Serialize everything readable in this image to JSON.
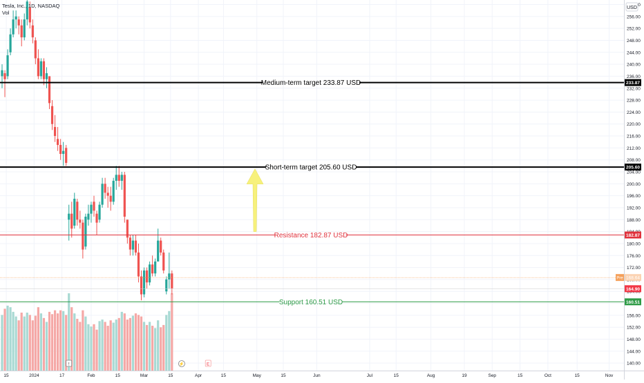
{
  "header": {
    "symbol_line": "Tesla, Inc., 1D, NASDAQ",
    "volume_label": "Vol"
  },
  "currency_button": "USD",
  "chart_data": {
    "type": "candlestick",
    "y_axis": {
      "min": 137.5,
      "max": 261.5,
      "ticks": [
        140,
        144,
        148,
        152,
        156,
        160,
        164,
        168,
        172,
        176,
        180,
        184,
        188,
        192,
        196,
        200,
        204,
        208,
        212,
        216,
        220,
        224,
        228,
        232,
        236,
        240,
        244,
        248,
        252,
        256,
        260
      ],
      "tick_labels": [
        "140.00",
        "144.00",
        "148.00",
        "152.00",
        "156.00",
        "160.00",
        "164.00",
        "168.00",
        "172.00",
        "176.00",
        "180.00",
        "184.00",
        "188.00",
        "192.00",
        "196.00",
        "200.00",
        "204.00",
        "208.00",
        "212.00",
        "216.00",
        "220.00",
        "224.00",
        "228.00",
        "232.00",
        "236.00",
        "240.00",
        "244.00",
        "248.00",
        "252.00",
        "256.00",
        "260.00"
      ]
    },
    "x_axis": {
      "labels": [
        {
          "text": "15",
          "bar": 1.5
        },
        {
          "text": "2024",
          "bar": 11.5
        },
        {
          "text": "17",
          "bar": 21.5
        },
        {
          "text": "Feb",
          "bar": 32
        },
        {
          "text": "15",
          "bar": 41.5
        },
        {
          "text": "Mar",
          "bar": 51
        },
        {
          "text": "15",
          "bar": 60.5
        },
        {
          "text": "Apr",
          "bar": 70.5
        },
        {
          "text": "15",
          "bar": 79.5
        },
        {
          "text": "May",
          "bar": 91.5
        },
        {
          "text": "15",
          "bar": 101
        },
        {
          "text": "Jun",
          "bar": 113
        },
        {
          "text": "Jul",
          "bar": 132
        },
        {
          "text": "15",
          "bar": 141.5
        },
        {
          "text": "Aug",
          "bar": 154
        },
        {
          "text": "19",
          "bar": 166
        },
        {
          "text": "Sep",
          "bar": 176
        },
        {
          "text": "15",
          "bar": 186
        },
        {
          "text": "Oct",
          "bar": 196
        },
        {
          "text": "15",
          "bar": 206.5
        },
        {
          "text": "Nov",
          "bar": 218
        }
      ]
    },
    "candles": [
      {
        "o": 236,
        "h": 240,
        "l": 232,
        "c": 238,
        "v": 72
      },
      {
        "o": 237,
        "h": 238,
        "l": 229,
        "c": 235,
        "v": 80
      },
      {
        "o": 236,
        "h": 245,
        "l": 235,
        "c": 243,
        "v": 84
      },
      {
        "o": 244,
        "h": 252,
        "l": 243,
        "c": 250,
        "v": 82
      },
      {
        "o": 250,
        "h": 258,
        "l": 249,
        "c": 255,
        "v": 76
      },
      {
        "o": 255,
        "h": 258,
        "l": 252,
        "c": 256,
        "v": 70
      },
      {
        "o": 255,
        "h": 256,
        "l": 250,
        "c": 253,
        "v": 65
      },
      {
        "o": 253,
        "h": 255,
        "l": 246,
        "c": 249,
        "v": 75
      },
      {
        "o": 249,
        "h": 257,
        "l": 248,
        "c": 255,
        "v": 70
      },
      {
        "o": 255,
        "h": 262,
        "l": 253,
        "c": 261,
        "v": 75
      },
      {
        "o": 259,
        "h": 261,
        "l": 252,
        "c": 254,
        "v": 72
      },
      {
        "o": 253,
        "h": 255,
        "l": 247,
        "c": 249,
        "v": 65
      },
      {
        "o": 248,
        "h": 249,
        "l": 240,
        "c": 242,
        "v": 71
      },
      {
        "o": 242,
        "h": 245,
        "l": 235,
        "c": 236,
        "v": 82
      },
      {
        "o": 236,
        "h": 242,
        "l": 235,
        "c": 241,
        "v": 74
      },
      {
        "o": 241,
        "h": 242,
        "l": 233,
        "c": 235,
        "v": 68
      },
      {
        "o": 235,
        "h": 239,
        "l": 232,
        "c": 237,
        "v": 63
      },
      {
        "o": 236,
        "h": 236,
        "l": 225,
        "c": 227,
        "v": 76
      },
      {
        "o": 226,
        "h": 228,
        "l": 218,
        "c": 220,
        "v": 73
      },
      {
        "o": 219,
        "h": 223,
        "l": 214,
        "c": 216,
        "v": 78
      },
      {
        "o": 215,
        "h": 219,
        "l": 211,
        "c": 213,
        "v": 74
      },
      {
        "o": 213,
        "h": 215,
        "l": 208,
        "c": 210,
        "v": 78
      },
      {
        "o": 210,
        "h": 214,
        "l": 206,
        "c": 211,
        "v": 77
      },
      {
        "o": 212,
        "h": 213,
        "l": 206,
        "c": 207,
        "v": 72
      },
      {
        "o": 188,
        "h": 193,
        "l": 181,
        "c": 190,
        "v": 100
      },
      {
        "o": 190,
        "h": 194,
        "l": 182,
        "c": 185,
        "v": 82
      },
      {
        "o": 186,
        "h": 197,
        "l": 185,
        "c": 195,
        "v": 74
      },
      {
        "o": 194,
        "h": 195,
        "l": 186,
        "c": 188,
        "v": 67
      },
      {
        "o": 188,
        "h": 191,
        "l": 185,
        "c": 187,
        "v": 63
      },
      {
        "o": 187,
        "h": 188,
        "l": 175,
        "c": 178,
        "v": 78
      },
      {
        "o": 179,
        "h": 190,
        "l": 178,
        "c": 189,
        "v": 70
      },
      {
        "o": 188,
        "h": 193,
        "l": 186,
        "c": 190,
        "v": 60
      },
      {
        "o": 190,
        "h": 194,
        "l": 187,
        "c": 193,
        "v": 57
      },
      {
        "o": 194,
        "h": 196,
        "l": 189,
        "c": 191,
        "v": 60
      },
      {
        "o": 190,
        "h": 191,
        "l": 183,
        "c": 187,
        "v": 53
      },
      {
        "o": 188,
        "h": 194,
        "l": 187,
        "c": 193,
        "v": 64
      },
      {
        "o": 193,
        "h": 202,
        "l": 192,
        "c": 200,
        "v": 66
      },
      {
        "o": 200,
        "h": 202,
        "l": 195,
        "c": 197,
        "v": 63
      },
      {
        "o": 197,
        "h": 199,
        "l": 192,
        "c": 196,
        "v": 58
      },
      {
        "o": 196,
        "h": 199,
        "l": 191,
        "c": 194,
        "v": 65
      },
      {
        "o": 194,
        "h": 202,
        "l": 193,
        "c": 201,
        "v": 62
      },
      {
        "o": 201,
        "h": 206,
        "l": 198,
        "c": 203,
        "v": 66
      },
      {
        "o": 203,
        "h": 206,
        "l": 199,
        "c": 201,
        "v": 68
      },
      {
        "o": 201,
        "h": 204,
        "l": 198,
        "c": 203,
        "v": 76
      },
      {
        "o": 203,
        "h": 204,
        "l": 187,
        "c": 189,
        "v": 74
      },
      {
        "o": 188,
        "h": 188,
        "l": 180,
        "c": 182,
        "v": 66
      },
      {
        "o": 182,
        "h": 183,
        "l": 176,
        "c": 178,
        "v": 68
      },
      {
        "o": 178,
        "h": 183,
        "l": 176,
        "c": 181,
        "v": 71
      },
      {
        "o": 181,
        "h": 183,
        "l": 176,
        "c": 177,
        "v": 74
      },
      {
        "o": 177,
        "h": 180,
        "l": 167,
        "c": 169,
        "v": 72
      },
      {
        "o": 169,
        "h": 171,
        "l": 161,
        "c": 163,
        "v": 70
      },
      {
        "o": 163,
        "h": 172,
        "l": 162,
        "c": 171,
        "v": 63
      },
      {
        "o": 171,
        "h": 172,
        "l": 165,
        "c": 167,
        "v": 59
      },
      {
        "o": 167,
        "h": 174,
        "l": 166,
        "c": 173,
        "v": 63
      },
      {
        "o": 173,
        "h": 176,
        "l": 169,
        "c": 170,
        "v": 58
      },
      {
        "o": 170,
        "h": 175,
        "l": 169,
        "c": 174,
        "v": 55
      },
      {
        "o": 174,
        "h": 185,
        "l": 174,
        "c": 181,
        "v": 65
      },
      {
        "o": 181,
        "h": 182,
        "l": 176,
        "c": 177,
        "v": 56
      },
      {
        "o": 177,
        "h": 178,
        "l": 170,
        "c": 171,
        "v": 59
      },
      {
        "o": 164,
        "h": 169,
        "l": 163,
        "c": 168,
        "v": 72
      },
      {
        "o": 168,
        "h": 177,
        "l": 165,
        "c": 170,
        "v": 77
      },
      {
        "o": 170,
        "h": 171,
        "l": 163,
        "c": 165,
        "v": 100
      }
    ],
    "horizontal_lines": [
      {
        "name": "Medium-term target",
        "price": 233.87,
        "label": "Medium-term target 233.87 USD",
        "axis_label": "233.87",
        "color": "#000000"
      },
      {
        "name": "Short-term target",
        "price": 205.6,
        "label": "Short-term target 205.60 USD",
        "axis_label": "205.60",
        "color": "#000000"
      },
      {
        "name": "Resistance",
        "price": 182.87,
        "label": "Resistance 182.87 USD",
        "axis_label": "182.87",
        "color": "#e0323c"
      },
      {
        "name": "Support",
        "price": 160.51,
        "label": "Support 160.51 USD",
        "axis_label": "160.51",
        "color": "#2e9b46"
      }
    ],
    "pre_market": {
      "price": 168.64,
      "tag": "Pre",
      "axis_label": "168.64",
      "color": "#f5a05a"
    },
    "last_price": {
      "price": 164.9,
      "axis_label": "164.90",
      "color": "#f23645"
    },
    "arrow": {
      "from_price": 184,
      "to_price": 205,
      "color": "#f7f17c"
    },
    "event_markers": [
      {
        "bar": 24,
        "glyph": "!"
      },
      {
        "bar": 64.5,
        "glyph": "⚡"
      },
      {
        "bar": 74,
        "glyph": "E"
      }
    ],
    "colors": {
      "up": "#26a69a",
      "down": "#ef5350",
      "vol_up": "#a8d9d3",
      "vol_down": "#f5a8a6"
    }
  }
}
